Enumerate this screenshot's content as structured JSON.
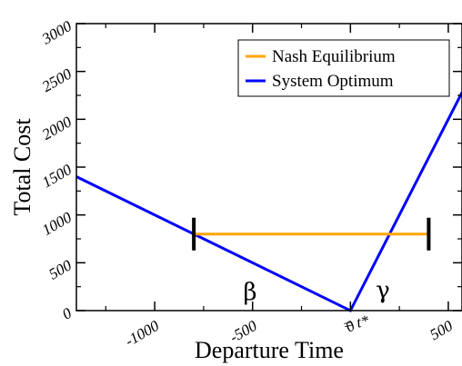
{
  "chart_data": {
    "type": "line",
    "xlabel": "Departure Time",
    "ylabel": "Total Cost",
    "xlim": [
      -1400,
      570
    ],
    "ylim": [
      0,
      3000
    ],
    "x_ticks": [
      -1000,
      -500,
      0,
      500
    ],
    "x_tick_labels": [
      "-1000",
      "-500",
      "0",
      "500"
    ],
    "y_ticks": [
      0,
      500,
      1000,
      1500,
      2000,
      2500,
      3000
    ],
    "y_tick_labels": [
      "0",
      "500",
      "1000",
      "1500",
      "2000",
      "2500",
      "3000"
    ],
    "grid": false,
    "legend_placement": "top-right",
    "series": [
      {
        "name": "Nash Equilibrium",
        "color": "#ffa500",
        "x": [
          -800,
          400
        ],
        "y": [
          800,
          800
        ]
      },
      {
        "name": "System Optimum",
        "color": "#0000ff",
        "x": [
          -1400,
          0,
          570
        ],
        "y": [
          1400,
          0,
          2280
        ]
      }
    ],
    "markers": [
      {
        "x": -800,
        "y": 800
      },
      {
        "x": 400,
        "y": 800
      }
    ],
    "annotations": {
      "beta": "β",
      "gamma": "γ",
      "t_star": "= t*"
    }
  }
}
